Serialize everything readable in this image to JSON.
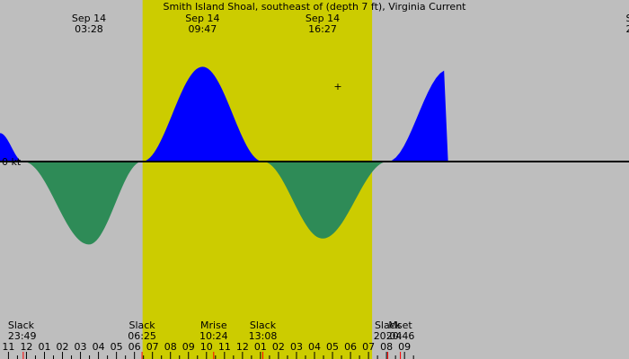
{
  "chart_data": {
    "type": "area",
    "title": "Smith Island Shoal, southeast of (depth 7 ft), Virginia Current",
    "xlim_hours": [
      -1.47,
      33.47
    ],
    "ylim_kt": [
      -1.55,
      1.55
    ],
    "zero_label": "0 kt",
    "daylight": {
      "start_hour": 6.45,
      "end_hour": 19.2
    },
    "colors": {
      "night_bg": "#bebebe",
      "day_bg": "#cccc00",
      "flood": "#0000ff",
      "ebb": "#2e8b57",
      "zero_line": "#000000",
      "minor_tick": "#ff0000",
      "major_tick": "#000000"
    },
    "current_curve": {
      "description_units": "knots vs hours from midnight Sep 14",
      "points": [
        {
          "x": -1.47,
          "y": 0.48
        },
        {
          "x": -0.18,
          "y": 0.0
        },
        {
          "x": 3.47,
          "y": -1.4
        },
        {
          "x": 6.42,
          "y": 0.0
        },
        {
          "x": 9.78,
          "y": 1.6
        },
        {
          "x": 13.13,
          "y": 0.0
        },
        {
          "x": 16.45,
          "y": -1.3
        },
        {
          "x": 20.07,
          "y": 0.0
        },
        {
          "x": 23.4,
          "y": 1.55
        }
      ]
    },
    "top_labels": [
      {
        "hour": 3.47,
        "date": "Sep 14",
        "time": "03:28"
      },
      {
        "hour": 9.78,
        "date": "Sep 14",
        "time": "09:47"
      },
      {
        "hour": 16.45,
        "date": "Sep 14",
        "time": "16:27"
      },
      {
        "hour": 33.47,
        "date": "S",
        "time": "2"
      }
    ],
    "events": [
      {
        "hour": -0.18,
        "name": "Slack",
        "time": "23:49"
      },
      {
        "hour": 6.42,
        "name": "Slack",
        "time": "06:25"
      },
      {
        "hour": 10.4,
        "name": "Mrise",
        "time": "10:24"
      },
      {
        "hour": 13.13,
        "name": "Slack",
        "time": "13:08"
      },
      {
        "hour": 20.07,
        "name": "Slack",
        "time": "20:04"
      },
      {
        "hour": 20.77,
        "name": "Mset",
        "time": "20:46"
      }
    ],
    "hour_ticks": [
      "11",
      "12",
      "01",
      "02",
      "03",
      "04",
      "05",
      "06",
      "07",
      "08",
      "09",
      "10",
      "11",
      "12",
      "01",
      "02",
      "03",
      "04",
      "05",
      "06",
      "07",
      "08",
      "09"
    ]
  }
}
